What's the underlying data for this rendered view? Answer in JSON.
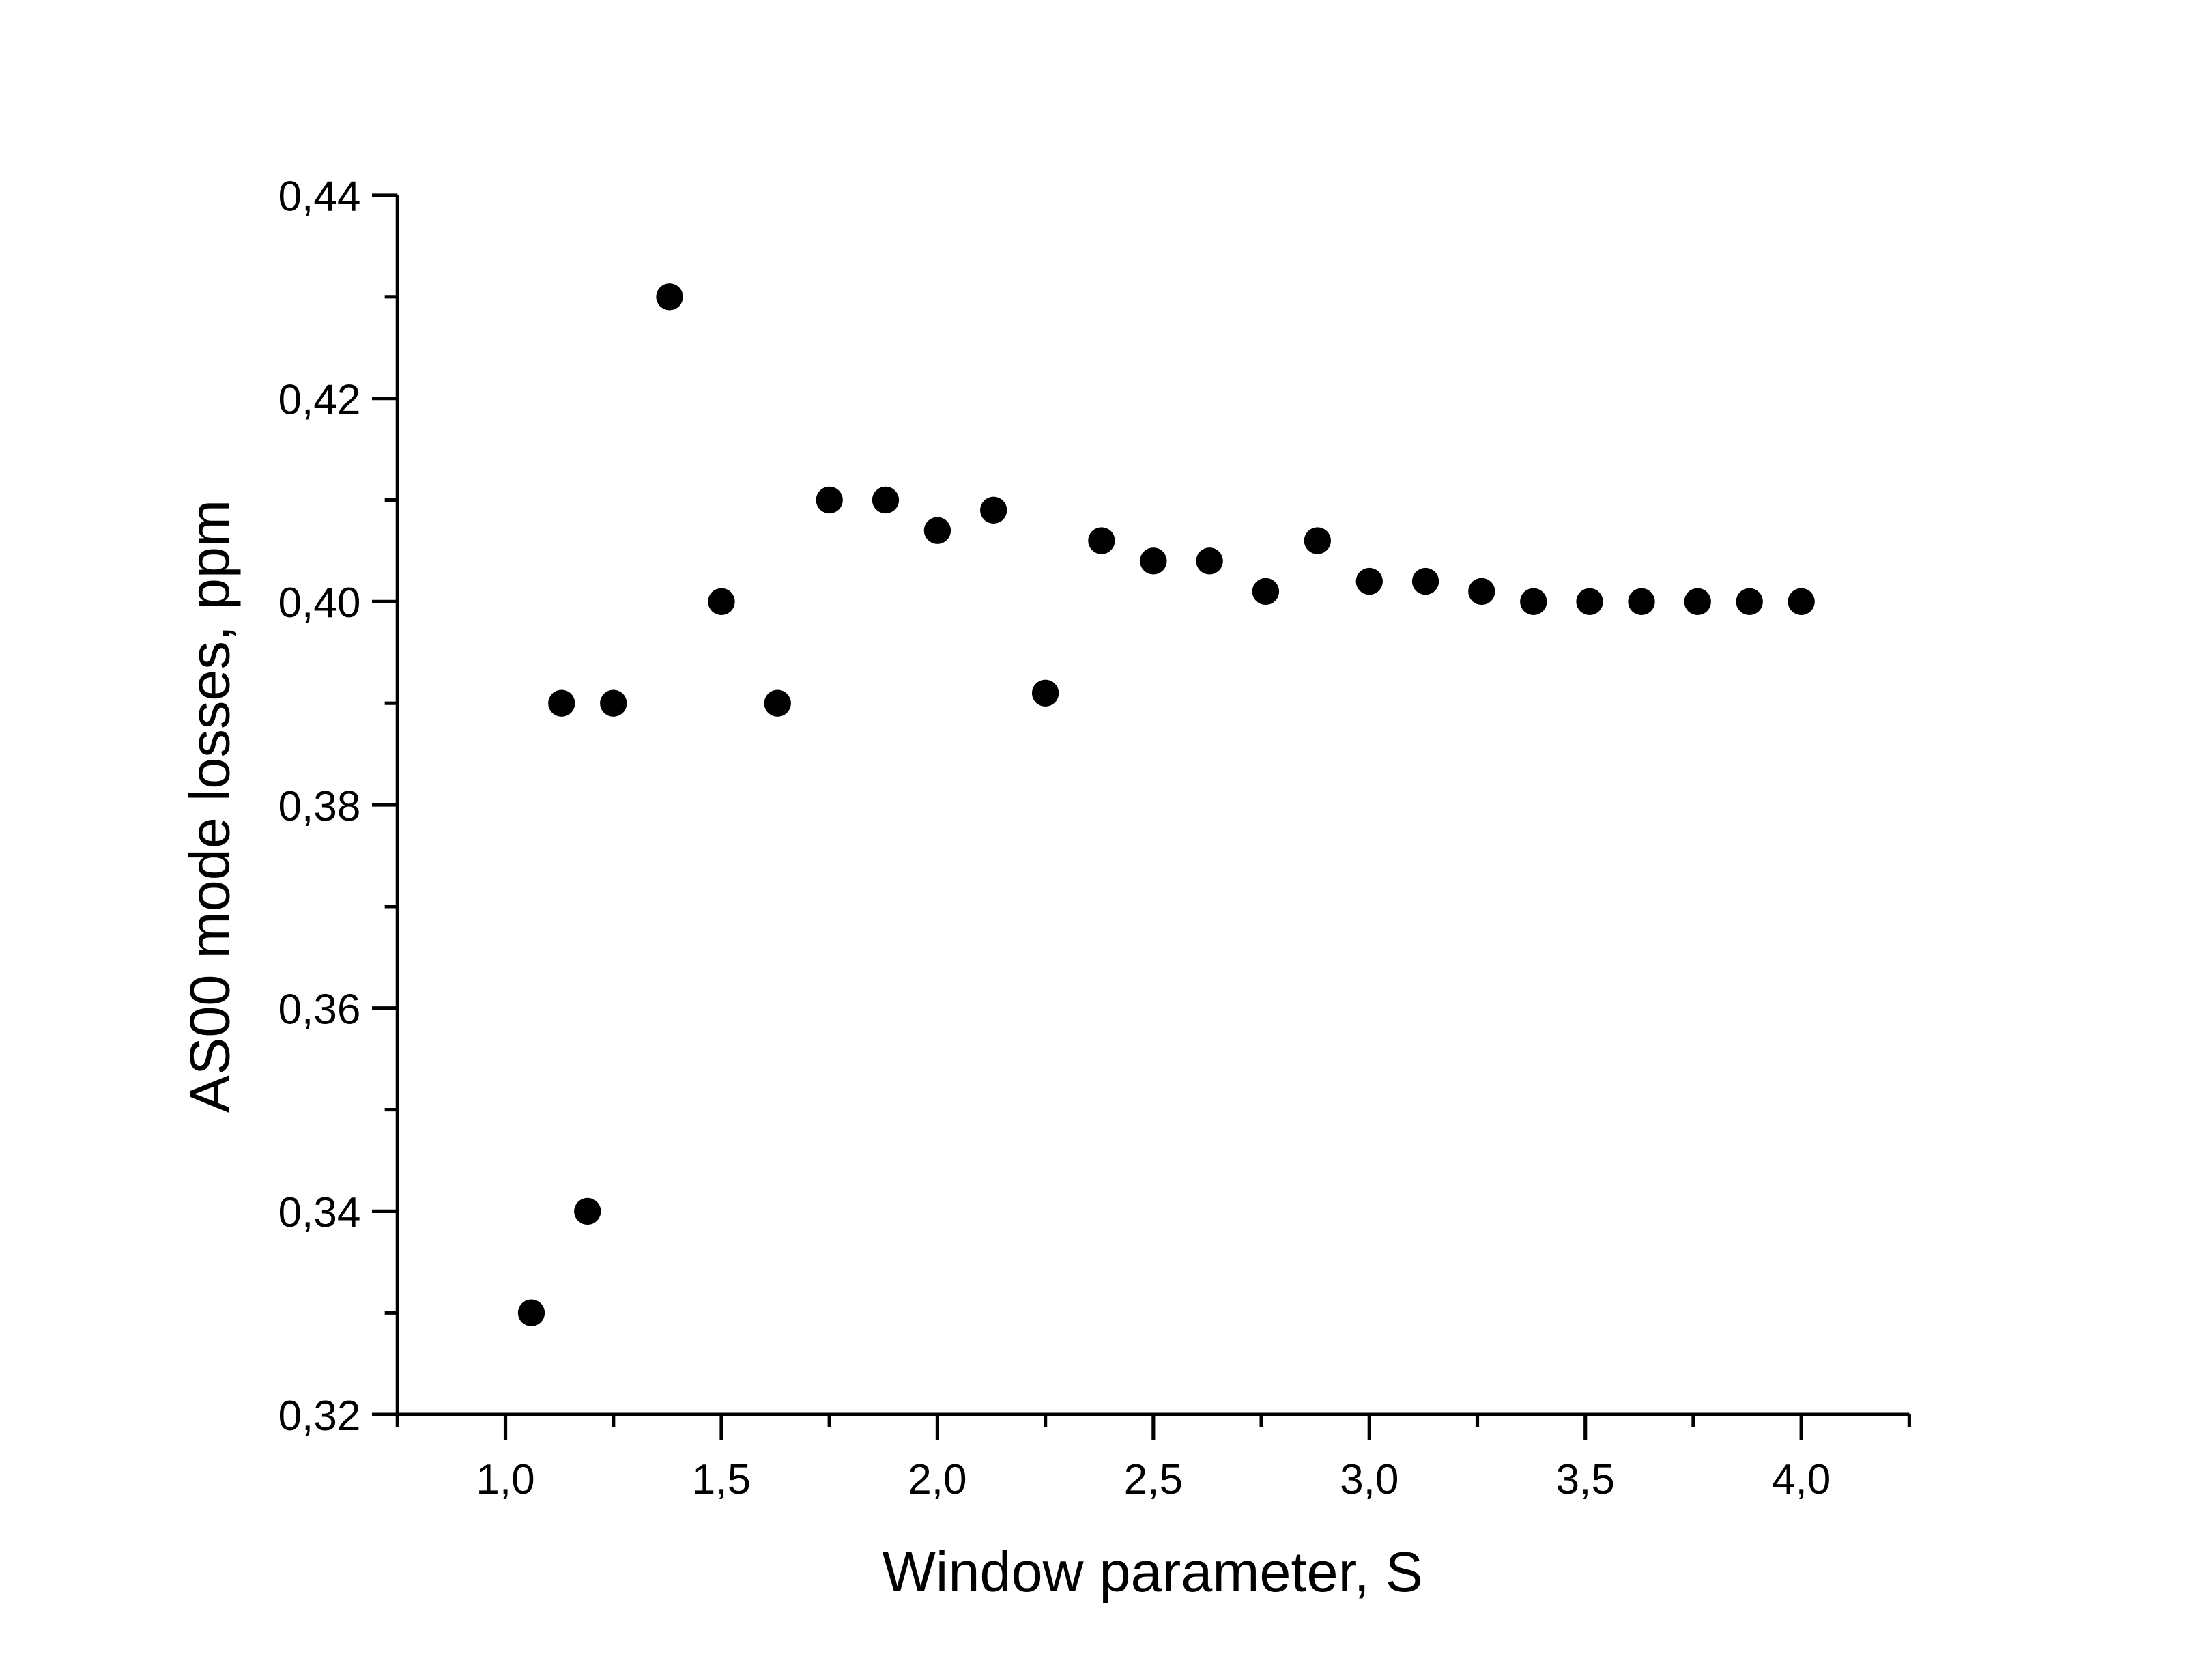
{
  "chart_data": {
    "type": "scatter",
    "x_label": "Window parameter, S",
    "y_label": "AS00 mode losses, ppm",
    "color": "#000000",
    "x": [
      1.06,
      1.13,
      1.19,
      1.25,
      1.38,
      1.5,
      1.63,
      1.75,
      1.88,
      2.0,
      2.13,
      2.25,
      2.38,
      2.5,
      2.63,
      2.76,
      2.88,
      3.0,
      3.13,
      3.26,
      3.38,
      3.51,
      3.63,
      3.76,
      3.88,
      4.0
    ],
    "values": [
      0.33,
      0.39,
      0.34,
      0.39,
      0.43,
      0.4,
      0.39,
      0.41,
      0.41,
      0.407,
      0.409,
      0.391,
      0.406,
      0.404,
      0.404,
      0.401,
      0.406,
      0.402,
      0.402,
      0.401,
      0.4,
      0.4,
      0.4,
      0.4,
      0.4,
      0.4
    ],
    "xlim": [
      0.75,
      4.25
    ],
    "ylim": [
      0.32,
      0.44
    ],
    "xticks": [
      {
        "value": 1.0,
        "label": "1,0"
      },
      {
        "value": 1.5,
        "label": "1,5"
      },
      {
        "value": 2.0,
        "label": "2,0"
      },
      {
        "value": 2.5,
        "label": "2,5"
      },
      {
        "value": 3.0,
        "label": "3,0"
      },
      {
        "value": 3.5,
        "label": "3,5"
      },
      {
        "value": 4.0,
        "label": "4,0"
      }
    ],
    "xminorticks": [
      0.75,
      1.25,
      1.75,
      2.25,
      2.75,
      3.25,
      3.75,
      4.25
    ],
    "yticks": [
      {
        "value": 0.32,
        "label": "0,32"
      },
      {
        "value": 0.34,
        "label": "0,34"
      },
      {
        "value": 0.36,
        "label": "0,36"
      },
      {
        "value": 0.38,
        "label": "0,38"
      },
      {
        "value": 0.4,
        "label": "0,40"
      },
      {
        "value": 0.42,
        "label": "0,42"
      },
      {
        "value": 0.44,
        "label": "0,44"
      }
    ],
    "yminorticks": [
      0.33,
      0.35,
      0.37,
      0.39,
      0.41,
      0.43
    ],
    "grid": false
  }
}
